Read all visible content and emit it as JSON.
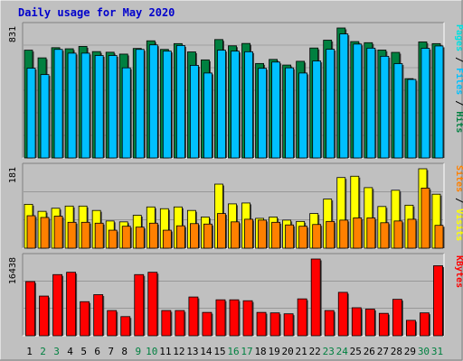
{
  "title": "Daily usage for May 2020",
  "colors": {
    "background": "#c0c0c0",
    "plot_bg": "#c0c0c0",
    "title": "#0000cc",
    "hits": "#008040",
    "files": "#00c0ff",
    "pages": "#00e0e0",
    "visits": "#ffff00",
    "sites": "#ff8000",
    "kbytes": "#ff0000",
    "weekend": "#008040"
  },
  "chart_data": [
    {
      "type": "bar",
      "ymax_label": "831",
      "legend": [
        {
          "label": "Hits",
          "color": "#008040"
        },
        {
          "label": "Files",
          "color": "#00c0ff"
        },
        {
          "label": "Pages",
          "color": "#00e0e0"
        }
      ],
      "categories": [
        "1",
        "2",
        "3",
        "4",
        "5",
        "6",
        "7",
        "8",
        "9",
        "10",
        "11",
        "12",
        "13",
        "14",
        "15",
        "16",
        "17",
        "18",
        "19",
        "20",
        "21",
        "22",
        "23",
        "24",
        "25",
        "26",
        "27",
        "28",
        "29",
        "30",
        "31"
      ],
      "series": [
        {
          "name": "Hits",
          "values": [
            689,
            640,
            705,
            698,
            713,
            680,
            676,
            664,
            700,
            749,
            694,
            731,
            678,
            627,
            757,
            717,
            732,
            604,
            630,
            594,
            618,
            703,
            753,
            831,
            744,
            737,
            690,
            675,
            507,
            742,
            731
          ]
        },
        {
          "name": "Files",
          "values": [
            574,
            533,
            694,
            670,
            670,
            655,
            655,
            576,
            694,
            723,
            683,
            719,
            592,
            543,
            689,
            683,
            679,
            573,
            613,
            576,
            543,
            620,
            695,
            793,
            728,
            702,
            650,
            603,
            502,
            701,
            716
          ]
        }
      ]
    },
    {
      "type": "bar",
      "ymax_label": "181",
      "legend": [
        {
          "label": "Visits",
          "color": "#ffff00"
        },
        {
          "label": "Sites",
          "color": "#ff8000"
        }
      ],
      "categories": [
        "1",
        "2",
        "3",
        "4",
        "5",
        "6",
        "7",
        "8",
        "9",
        "10",
        "11",
        "12",
        "13",
        "14",
        "15",
        "16",
        "17",
        "18",
        "19",
        "20",
        "21",
        "22",
        "23",
        "24",
        "25",
        "26",
        "27",
        "28",
        "29",
        "30",
        "31"
      ],
      "series": [
        {
          "name": "Visits",
          "values": [
            100,
            84,
            91,
            96,
            96,
            86,
            62,
            60,
            75,
            94,
            90,
            94,
            86,
            71,
            146,
            101,
            103,
            68,
            71,
            64,
            61,
            79,
            112,
            161,
            164,
            138,
            95,
            132,
            98,
            181,
            123
          ]
        },
        {
          "name": "Sites",
          "values": [
            74,
            70,
            73,
            59,
            59,
            57,
            41,
            50,
            48,
            57,
            41,
            51,
            56,
            55,
            79,
            60,
            66,
            64,
            59,
            53,
            50,
            54,
            61,
            64,
            69,
            69,
            58,
            62,
            66,
            137,
            52
          ]
        }
      ]
    },
    {
      "type": "bar",
      "ymax_label": "16438",
      "legend": [
        {
          "label": "KBytes",
          "color": "#ff0000"
        }
      ],
      "categories": [
        "1",
        "2",
        "3",
        "4",
        "5",
        "6",
        "7",
        "8",
        "9",
        "10",
        "11",
        "12",
        "13",
        "14",
        "15",
        "16",
        "17",
        "18",
        "19",
        "20",
        "21",
        "22",
        "23",
        "24",
        "25",
        "26",
        "27",
        "28",
        "29",
        "30",
        "31"
      ],
      "series": [
        {
          "name": "KBytes",
          "values": [
            11600,
            8500,
            13100,
            13600,
            7300,
            8800,
            5400,
            4100,
            13100,
            13600,
            5400,
            5400,
            8300,
            5000,
            7700,
            7700,
            7500,
            5000,
            4900,
            4700,
            7900,
            16438,
            5400,
            9300,
            6000,
            5700,
            4800,
            7800,
            3300,
            4900,
            15000
          ]
        }
      ]
    }
  ],
  "x_axis": {
    "labels": [
      "1",
      "2",
      "3",
      "4",
      "5",
      "6",
      "7",
      "8",
      "9",
      "10",
      "11",
      "12",
      "13",
      "14",
      "15",
      "16",
      "17",
      "18",
      "19",
      "20",
      "21",
      "22",
      "23",
      "24",
      "25",
      "26",
      "27",
      "28",
      "29",
      "30",
      "31"
    ],
    "weekend": [
      2,
      3,
      9,
      10,
      16,
      17,
      23,
      24,
      30,
      31
    ]
  }
}
